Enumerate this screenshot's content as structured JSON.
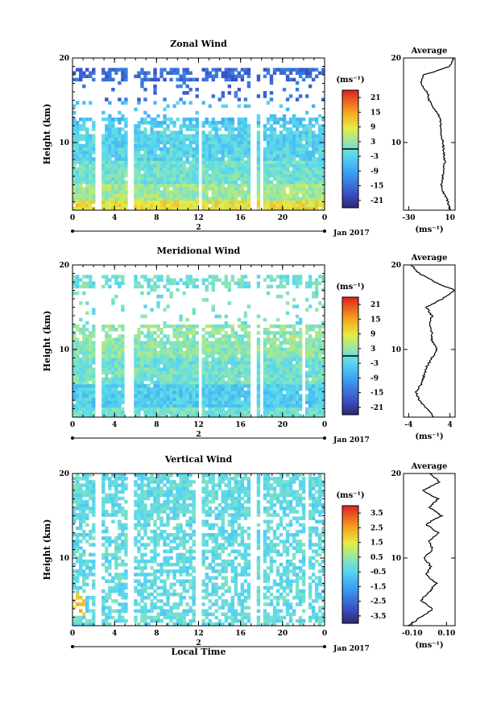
{
  "figure": {
    "date_label": "Jan 2017",
    "day_label": "2",
    "xlabel_bottom": "Local Time",
    "colorbar_unit": "(ms⁻¹)",
    "avg_unit": "(ms⁻¹)",
    "avg_title": "Average"
  },
  "chart_data": [
    {
      "type": "heatmap",
      "title": "Zonal Wind",
      "ylabel": "Height (km)",
      "xlabel": "",
      "x_ticks": [
        "0",
        "4",
        "8",
        "12",
        "16",
        "20",
        "0"
      ],
      "xlim": [
        0,
        24
      ],
      "y_ticks": [
        "10",
        "20"
      ],
      "ylim": [
        2,
        20
      ],
      "colorbar": {
        "ticks": [
          "21",
          "15",
          "9",
          "3",
          "-3",
          "-9",
          "-15",
          "-21"
        ],
        "range": [
          -24,
          24
        ],
        "zero_line_at": 0
      },
      "data_gaps_hours": [
        2.4,
        5.6,
        12.2,
        17.2,
        18.0
      ],
      "profile": [
        [
          2,
          10
        ],
        [
          3,
          8
        ],
        [
          4,
          4
        ],
        [
          5,
          2
        ],
        [
          6,
          3
        ],
        [
          7,
          4
        ],
        [
          8,
          5
        ],
        [
          9,
          4
        ],
        [
          10,
          3
        ],
        [
          11,
          2
        ],
        [
          12,
          1
        ],
        [
          13,
          0
        ],
        [
          14,
          -5
        ],
        [
          15,
          -10
        ],
        [
          16,
          -12
        ],
        [
          17,
          -18
        ],
        [
          18,
          -15
        ],
        [
          19,
          10
        ],
        [
          20,
          14
        ]
      ],
      "avg_x_ticks": [
        "-30",
        "10"
      ],
      "avg_xlim": [
        -35,
        15
      ],
      "avg_y_ticks": [
        "10",
        "20"
      ]
    },
    {
      "type": "heatmap",
      "title": "Meridional Wind",
      "ylabel": "Height (km)",
      "xlabel": "",
      "x_ticks": [
        "0",
        "4",
        "8",
        "12",
        "16",
        "20",
        "0"
      ],
      "xlim": [
        0,
        24
      ],
      "y_ticks": [
        "10",
        "20"
      ],
      "ylim": [
        2,
        20
      ],
      "colorbar": {
        "ticks": [
          "21",
          "15",
          "9",
          "3",
          "-3",
          "-9",
          "-15",
          "-21"
        ],
        "range": [
          -24,
          24
        ],
        "zero_line_at": 0
      },
      "data_gaps_hours": [
        2.4,
        5.1,
        5.6,
        12.2,
        17.2,
        18.0,
        22.0
      ],
      "profile": [
        [
          2,
          1.0
        ],
        [
          3,
          -0.5
        ],
        [
          4,
          -2.0
        ],
        [
          5,
          -2.5
        ],
        [
          6,
          -1.5
        ],
        [
          7,
          -1.0
        ],
        [
          8,
          -0.5
        ],
        [
          9,
          0.5
        ],
        [
          10,
          1.5
        ],
        [
          11,
          0.5
        ],
        [
          12,
          0.5
        ],
        [
          13,
          0.0
        ],
        [
          14,
          0.5
        ],
        [
          15,
          -0.5
        ],
        [
          16,
          2.5
        ],
        [
          17,
          5.0
        ],
        [
          18,
          1.0
        ],
        [
          19,
          -2.0
        ],
        [
          20,
          -3.5
        ]
      ],
      "avg_x_ticks": [
        "-4",
        "4"
      ],
      "avg_xlim": [
        -5,
        5
      ],
      "avg_y_ticks": [
        "10",
        "20"
      ]
    },
    {
      "type": "heatmap",
      "title": "Vertical Wind",
      "ylabel": "Height (km)",
      "xlabel": "Local Time",
      "x_ticks": [
        "0",
        "4",
        "8",
        "12",
        "16",
        "20",
        "0"
      ],
      "xlim": [
        0,
        24
      ],
      "y_ticks": [
        "10",
        "20"
      ],
      "ylim": [
        2,
        20
      ],
      "colorbar": {
        "ticks": [
          "3.5",
          "2.5",
          "1.5",
          "0.5",
          "-0.5",
          "-1.5",
          "-2.5",
          "-3.5"
        ],
        "range": [
          -4,
          4
        ]
      },
      "data_gaps_hours": [
        2.4,
        5.6,
        11.8,
        12.2,
        17.2,
        18.0,
        22.3
      ],
      "profile": [
        [
          2,
          -0.12
        ],
        [
          3,
          -0.05
        ],
        [
          4,
          0.02
        ],
        [
          5,
          -0.05
        ],
        [
          6,
          0.0
        ],
        [
          7,
          0.04
        ],
        [
          8,
          -0.02
        ],
        [
          9,
          0.01
        ],
        [
          10,
          -0.03
        ],
        [
          11,
          0.02
        ],
        [
          12,
          0.0
        ],
        [
          13,
          0.05
        ],
        [
          14,
          -0.02
        ],
        [
          15,
          0.07
        ],
        [
          16,
          0.0
        ],
        [
          17,
          0.05
        ],
        [
          18,
          -0.04
        ],
        [
          19,
          0.06
        ],
        [
          20,
          0.0
        ]
      ],
      "avg_x_ticks": [
        "-0.10",
        "0.10"
      ],
      "avg_xlim": [
        -0.15,
        0.15
      ],
      "avg_y_ticks": [
        "10",
        "20"
      ]
    }
  ]
}
